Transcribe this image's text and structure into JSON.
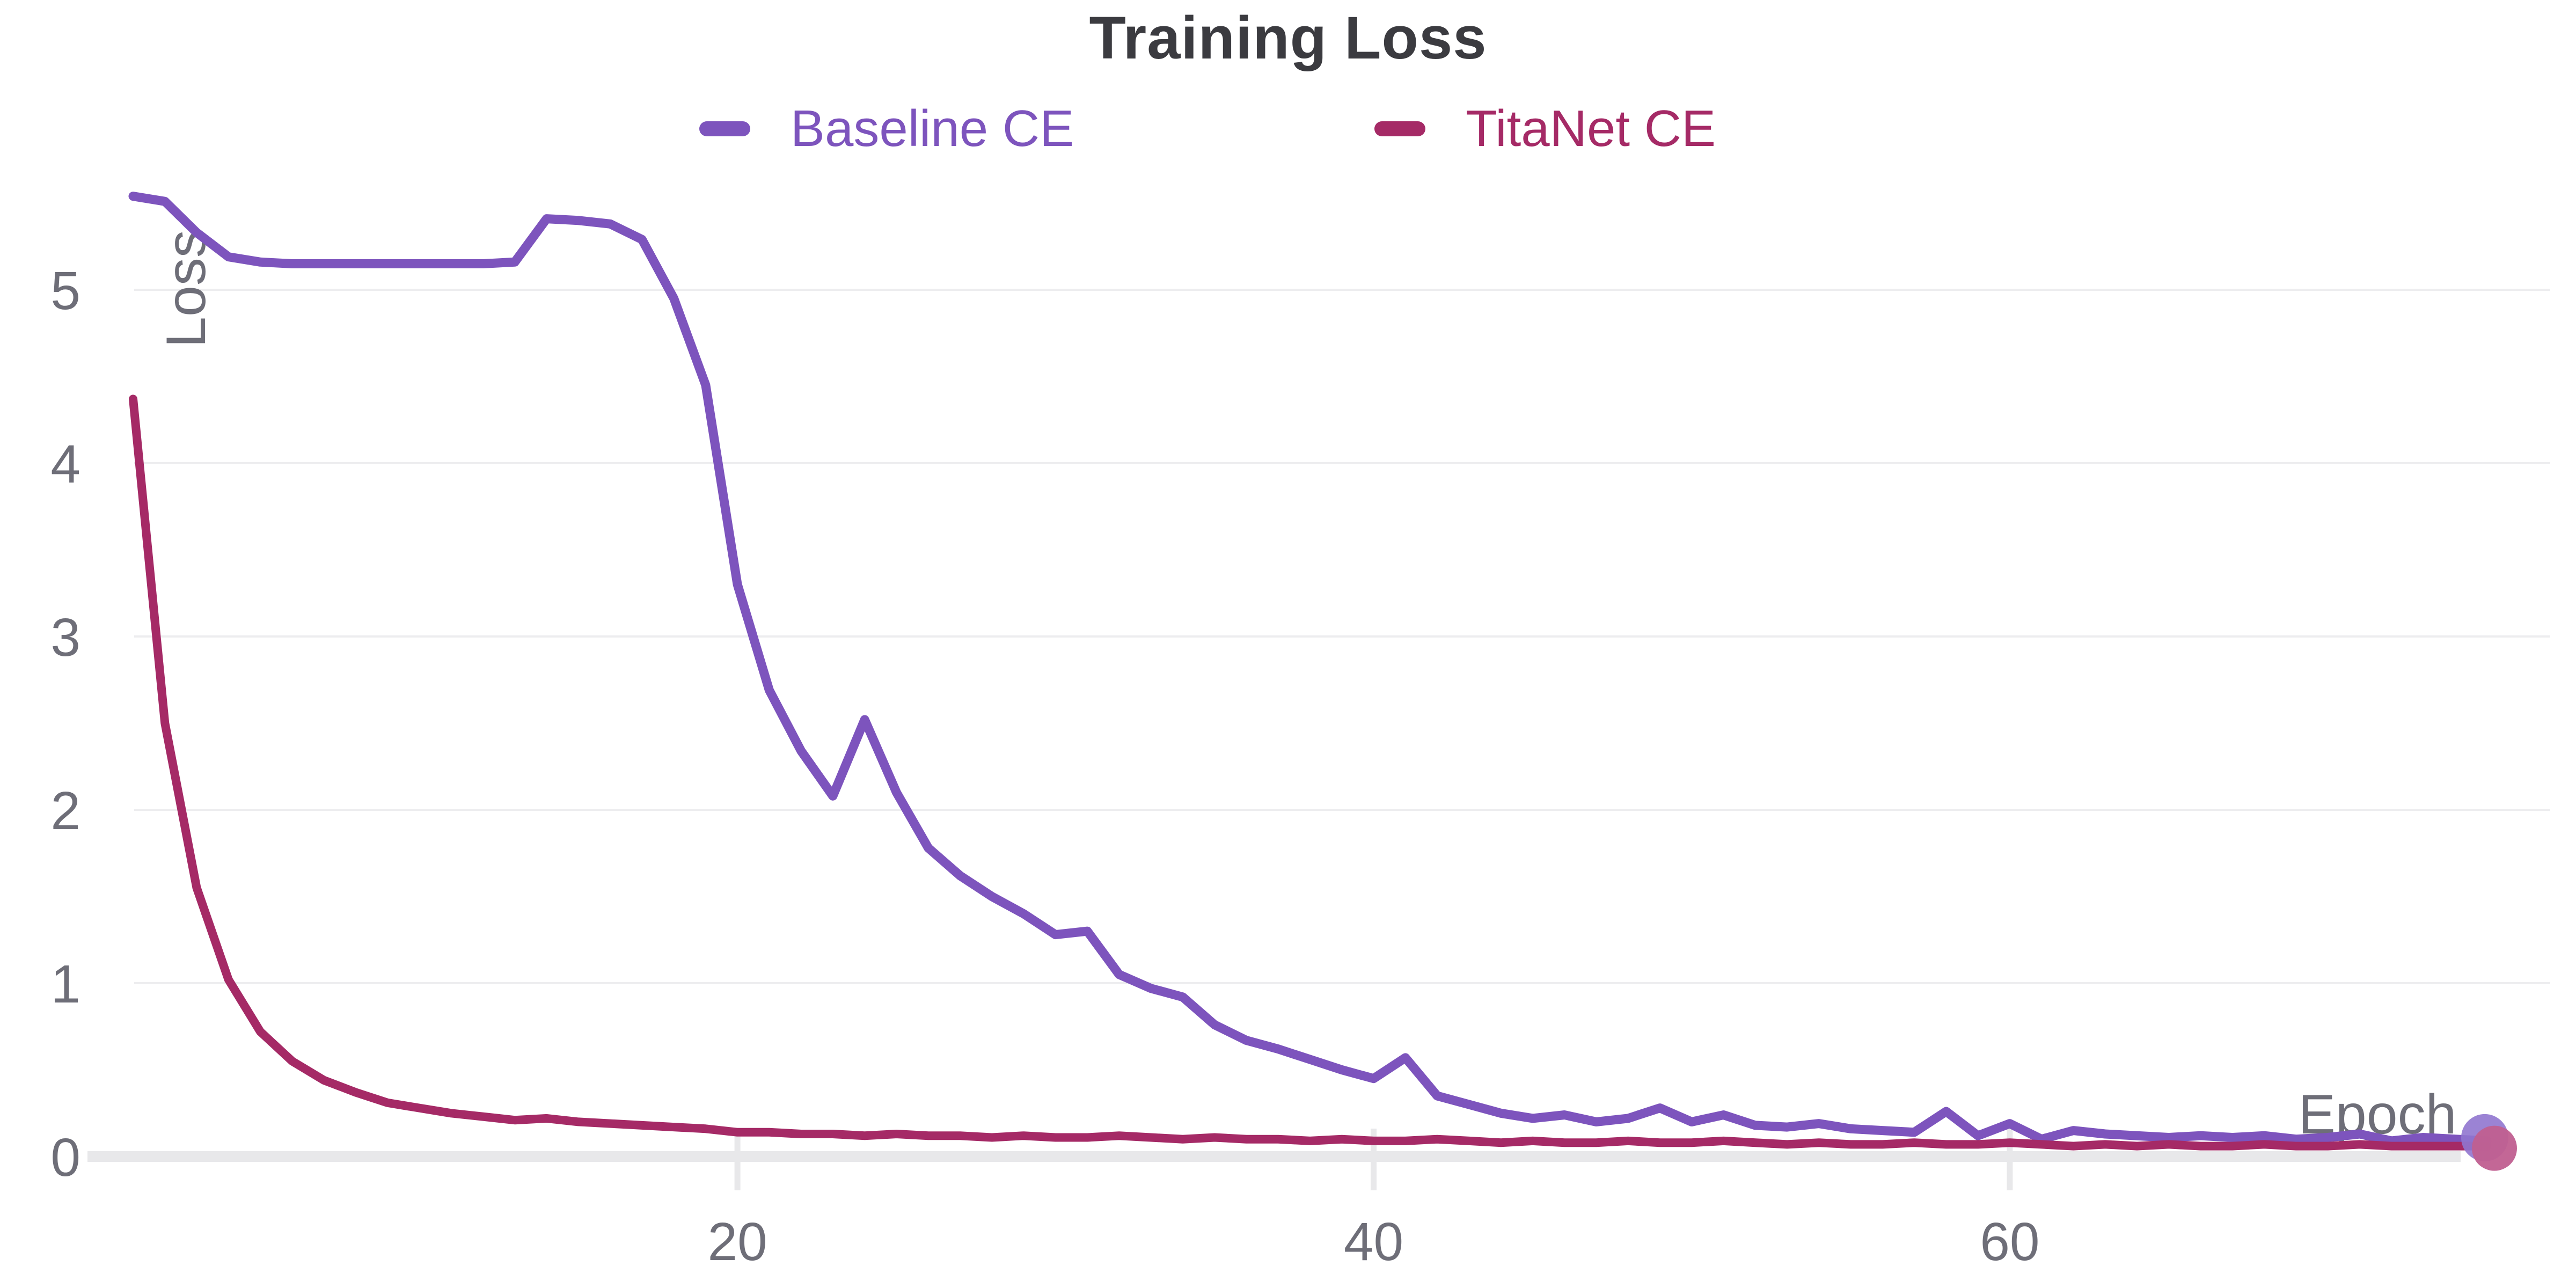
{
  "ui": {
    "title": "Training Loss"
  },
  "chart_data": {
    "type": "line",
    "title": "Training Loss",
    "xlabel": "Epoch",
    "ylabel": "Loss",
    "legend_position": "top",
    "grid": "horizontal",
    "xlim": [
      1,
      75
    ],
    "ylim": [
      0,
      5.6
    ],
    "xticks": [
      20,
      40,
      60
    ],
    "yticks": [
      0,
      1,
      2,
      3,
      4,
      5
    ],
    "x": [
      1,
      2,
      3,
      4,
      5,
      6,
      7,
      8,
      9,
      10,
      11,
      12,
      13,
      14,
      15,
      16,
      17,
      18,
      19,
      20,
      21,
      22,
      23,
      24,
      25,
      26,
      27,
      28,
      29,
      30,
      31,
      32,
      33,
      34,
      35,
      36,
      37,
      38,
      39,
      40,
      41,
      42,
      43,
      44,
      45,
      46,
      47,
      48,
      49,
      50,
      51,
      52,
      53,
      54,
      55,
      56,
      57,
      58,
      59,
      60,
      61,
      62,
      63,
      64,
      65,
      66,
      67,
      68,
      69,
      70,
      71,
      72,
      73,
      74,
      75
    ],
    "series": [
      {
        "name": "Baseline CE",
        "color": "#7d54bd",
        "values": [
          5.54,
          5.51,
          5.33,
          5.19,
          5.16,
          5.15,
          5.15,
          5.15,
          5.15,
          5.15,
          5.15,
          5.15,
          5.16,
          5.41,
          5.4,
          5.38,
          5.29,
          4.95,
          4.45,
          3.3,
          2.69,
          2.34,
          2.08,
          2.52,
          2.1,
          1.78,
          1.62,
          1.5,
          1.4,
          1.28,
          1.3,
          1.05,
          0.97,
          0.92,
          0.76,
          0.67,
          0.62,
          0.56,
          0.5,
          0.45,
          0.57,
          0.35,
          0.3,
          0.25,
          0.22,
          0.24,
          0.2,
          0.22,
          0.28,
          0.2,
          0.24,
          0.18,
          0.17,
          0.19,
          0.16,
          0.15,
          0.14,
          0.26,
          0.12,
          0.19,
          0.1,
          0.15,
          0.13,
          0.12,
          0.11,
          0.12,
          0.11,
          0.12,
          0.1,
          0.11,
          0.13,
          0.09,
          0.11,
          0.1,
          0.09
        ]
      },
      {
        "name": "TitaNet CE",
        "color": "#a52a66",
        "values": [
          4.37,
          2.5,
          1.55,
          1.02,
          0.72,
          0.55,
          0.44,
          0.37,
          0.31,
          0.28,
          0.25,
          0.23,
          0.21,
          0.22,
          0.2,
          0.19,
          0.18,
          0.17,
          0.16,
          0.14,
          0.14,
          0.13,
          0.13,
          0.12,
          0.13,
          0.12,
          0.12,
          0.11,
          0.12,
          0.11,
          0.11,
          0.12,
          0.11,
          0.1,
          0.11,
          0.1,
          0.1,
          0.09,
          0.1,
          0.09,
          0.09,
          0.1,
          0.09,
          0.08,
          0.09,
          0.08,
          0.08,
          0.09,
          0.08,
          0.08,
          0.09,
          0.08,
          0.07,
          0.08,
          0.07,
          0.07,
          0.08,
          0.07,
          0.07,
          0.08,
          0.07,
          0.06,
          0.07,
          0.06,
          0.07,
          0.06,
          0.06,
          0.07,
          0.06,
          0.06,
          0.07,
          0.06,
          0.06,
          0.06,
          0.06
        ]
      }
    ],
    "colors": {
      "title_text": "#3b3b40",
      "tick_text": "#6e6e78",
      "gridline": "#ededef",
      "axis_line": "#e8e8ea",
      "baseline_series": "#7d54bd",
      "titanet_series": "#a52a66",
      "end_dot_purple": "#9076cf",
      "end_dot_pink": "#c05f90"
    }
  }
}
